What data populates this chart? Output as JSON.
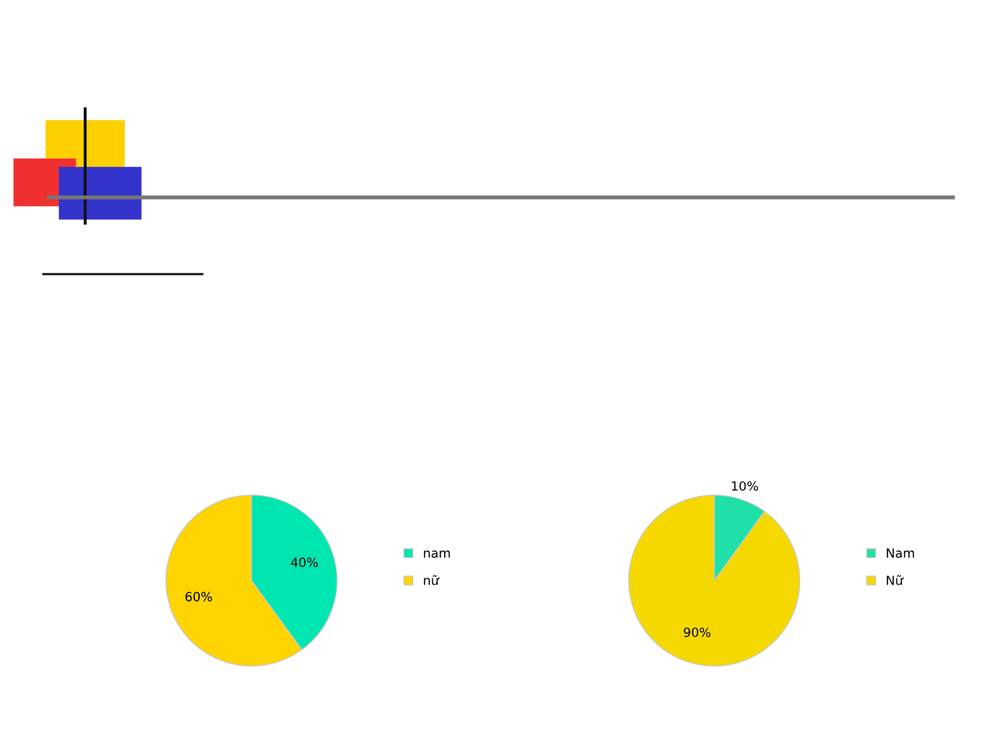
{
  "chart_data": [
    {
      "type": "pie",
      "categories": [
        "nam",
        "nữ"
      ],
      "values": [
        40,
        60
      ],
      "colors": [
        "#00e6b0",
        "#ffd400"
      ],
      "value_labels": [
        "40%",
        "60%"
      ],
      "legend": "right"
    },
    {
      "type": "pie",
      "categories": [
        "Nam",
        "Nữ"
      ],
      "values": [
        10,
        90
      ],
      "colors": [
        "#1ee0a8",
        "#f5d800"
      ],
      "value_labels": [
        "10%",
        "90%"
      ],
      "legend": "right"
    }
  ]
}
